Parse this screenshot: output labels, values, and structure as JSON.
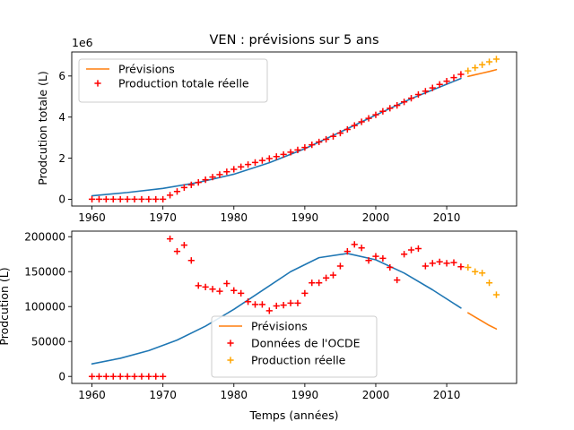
{
  "chart_data": [
    {
      "type": "line",
      "title": "VEN : prévisions sur 5 ans",
      "ylabel": "Prodcution totale (L)",
      "xlabel": "",
      "offset_text": "1e6",
      "xlim": [
        1957.15,
        2019.85
      ],
      "ylim": [
        -330000,
        7170000
      ],
      "xticks": [
        1960,
        1970,
        1980,
        1990,
        2000,
        2010
      ],
      "yticks": [
        0,
        2000000,
        4000000,
        6000000
      ],
      "ytick_labels": [
        "0",
        "2",
        "4",
        "6"
      ],
      "legend": {
        "position": "upper-left",
        "entries": [
          "Prévisions",
          "Production totale réelle"
        ]
      },
      "colors": {
        "fit": "#1f77b4",
        "forecast": "#ff7f0e",
        "observed": "#ff0000",
        "future": "#ffa500"
      },
      "series": [
        {
          "role": "fit",
          "style": "line",
          "x": [
            1960,
            1965,
            1970,
            1975,
            1980,
            1985,
            1990,
            1995,
            2000,
            2005,
            2010,
            2012
          ],
          "y": [
            170000,
            330000,
            530000,
            820000,
            1220000,
            1780000,
            2460000,
            3270000,
            4100000,
            4900000,
            5600000,
            5880000
          ]
        },
        {
          "role": "forecast",
          "name": "Prévisions",
          "style": "line",
          "x": [
            2013,
            2014,
            2015,
            2016,
            2017
          ],
          "y": [
            5980000,
            6060000,
            6140000,
            6220000,
            6310000
          ]
        },
        {
          "role": "observed",
          "name": "Production totale réelle",
          "style": "plus",
          "x": [
            1960,
            1961,
            1962,
            1963,
            1964,
            1965,
            1966,
            1967,
            1968,
            1969,
            1970,
            1971,
            1972,
            1973,
            1974,
            1975,
            1976,
            1977,
            1978,
            1979,
            1980,
            1981,
            1982,
            1983,
            1984,
            1985,
            1986,
            1987,
            1988,
            1989,
            1990,
            1991,
            1992,
            1993,
            1994,
            1995,
            1996,
            1997,
            1998,
            1999,
            2000,
            2001,
            2002,
            2003,
            2004,
            2005,
            2006,
            2007,
            2008,
            2009,
            2010,
            2011,
            2012
          ],
          "y": [
            0,
            0,
            0,
            0,
            0,
            0,
            0,
            0,
            0,
            0,
            0,
            200000,
            380000,
            570000,
            700000,
            820000,
            950000,
            1080000,
            1200000,
            1340000,
            1460000,
            1580000,
            1690000,
            1790000,
            1890000,
            1980000,
            2080000,
            2180000,
            2290000,
            2400000,
            2520000,
            2650000,
            2790000,
            2920000,
            3060000,
            3220000,
            3400000,
            3590000,
            3770000,
            3940000,
            4110000,
            4280000,
            4430000,
            4570000,
            4740000,
            4920000,
            5100000,
            5260000,
            5420000,
            5590000,
            5750000,
            5920000,
            6080000
          ]
        },
        {
          "role": "future",
          "style": "plus",
          "x": [
            2013,
            2014,
            2015,
            2016,
            2017
          ],
          "y": [
            6250000,
            6400000,
            6550000,
            6690000,
            6820000
          ]
        }
      ]
    },
    {
      "type": "line",
      "title": "",
      "ylabel": "Prodcution (L)",
      "xlabel": "Temps (années)",
      "xlim": [
        1957.15,
        2019.85
      ],
      "ylim": [
        -10000,
        208000
      ],
      "xticks": [
        1960,
        1970,
        1980,
        1990,
        2000,
        2010
      ],
      "yticks": [
        0,
        50000,
        100000,
        150000,
        200000
      ],
      "ytick_labels": [
        "0",
        "50000",
        "100000",
        "150000",
        "200000"
      ],
      "legend": {
        "position": "lower-center",
        "entries": [
          "Prévisions",
          "Données de l'OCDE",
          "Production réelle"
        ]
      },
      "colors": {
        "fit": "#1f77b4",
        "forecast": "#ff7f0e",
        "observed": "#ff0000",
        "future": "#ffa500"
      },
      "series": [
        {
          "role": "fit",
          "style": "line",
          "x": [
            1960,
            1964,
            1968,
            1972,
            1976,
            1980,
            1984,
            1988,
            1992,
            1996,
            2000,
            2004,
            2008,
            2012
          ],
          "y": [
            18000,
            26000,
            37000,
            52000,
            72000,
            96000,
            123000,
            150000,
            170000,
            176000,
            167000,
            148000,
            124000,
            98000
          ]
        },
        {
          "role": "forecast",
          "name": "Prévisions",
          "style": "line",
          "x": [
            2013,
            2014,
            2015,
            2016,
            2017
          ],
          "y": [
            91000,
            85000,
            79000,
            73000,
            68000
          ]
        },
        {
          "role": "observed",
          "name": "Données de l'OCDE",
          "style": "plus",
          "x": [
            1960,
            1961,
            1962,
            1963,
            1964,
            1965,
            1966,
            1967,
            1968,
            1969,
            1970,
            1971,
            1972,
            1973,
            1974,
            1975,
            1976,
            1977,
            1978,
            1979,
            1980,
            1981,
            1982,
            1983,
            1984,
            1985,
            1986,
            1987,
            1988,
            1989,
            1990,
            1991,
            1992,
            1993,
            1994,
            1995,
            1996,
            1997,
            1998,
            1999,
            2000,
            2001,
            2002,
            2003,
            2004,
            2005,
            2006,
            2007,
            2008,
            2009,
            2010,
            2011,
            2012
          ],
          "y": [
            0,
            0,
            0,
            0,
            0,
            0,
            0,
            0,
            0,
            0,
            0,
            197000,
            179000,
            188000,
            166000,
            130000,
            128000,
            125000,
            122000,
            133000,
            123000,
            119000,
            107000,
            103000,
            103000,
            94000,
            101000,
            102000,
            105000,
            105000,
            119000,
            134000,
            134000,
            141000,
            145000,
            158000,
            179000,
            189000,
            184000,
            166000,
            172000,
            169000,
            156000,
            138000,
            175000,
            181000,
            183000,
            158000,
            162000,
            164000,
            162000,
            163000,
            157000
          ]
        },
        {
          "role": "future",
          "name": "Production réelle",
          "style": "plus",
          "x": [
            2013,
            2014,
            2015,
            2016,
            2017
          ],
          "y": [
            156000,
            150000,
            148000,
            134000,
            117000
          ]
        }
      ]
    }
  ]
}
